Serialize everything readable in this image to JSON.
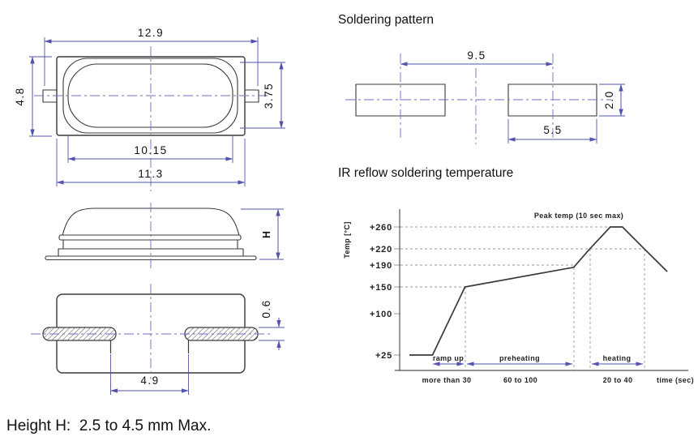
{
  "headings": {
    "soldering_pattern": "Soldering pattern",
    "ir_reflow": "IR reflow soldering temperature"
  },
  "footer": {
    "height_note": "Height H:  2.5 to 4.5 mm Max."
  },
  "package_drawing": {
    "top_view": {
      "overall_width": "12.9",
      "overall_height": "4.8",
      "lid_height": "3.75",
      "lid_width": "10.15",
      "body_width": "11.3"
    },
    "side_view": {
      "height_label": "H"
    },
    "bottom_view": {
      "pad_thickness": "0.6",
      "lead_pitch": "4.9"
    }
  },
  "soldering_pattern": {
    "pad_pitch": "9.5",
    "pad_width": "5.5",
    "pad_height": "2.0"
  },
  "chart_data": {
    "type": "line",
    "title": "IR reflow soldering temperature",
    "ylabel": "Temp [°C]",
    "xlabel": "time (sec)",
    "ylim": [
      25,
      280
    ],
    "xunits": "sec",
    "grid": "dashed reference lines at key temperatures",
    "legend_position": "none",
    "yticks": [
      {
        "label": "+260",
        "value": 260
      },
      {
        "label": "+220",
        "value": 220
      },
      {
        "label": "+190",
        "value": 190
      },
      {
        "label": "+150",
        "value": 150
      },
      {
        "label": "+100",
        "value": 100
      },
      {
        "label": "+25",
        "value": 25
      }
    ],
    "gridline_temps": [
      260,
      220,
      190,
      150
    ],
    "annotation": "Peak temp (10 sec max)",
    "phases": [
      {
        "label": "ramp up",
        "duration_sec": "more than 30"
      },
      {
        "label": "preheating",
        "duration_sec": "60 to 100"
      },
      {
        "label": "heating",
        "duration_sec": "20 to 40"
      }
    ],
    "profile_time_temp": [
      [
        0,
        25
      ],
      [
        17,
        25
      ],
      [
        41,
        150
      ],
      [
        121,
        186
      ],
      [
        133,
        220
      ],
      [
        148,
        260
      ],
      [
        157,
        260
      ],
      [
        173,
        220
      ],
      [
        190,
        178
      ]
    ]
  }
}
